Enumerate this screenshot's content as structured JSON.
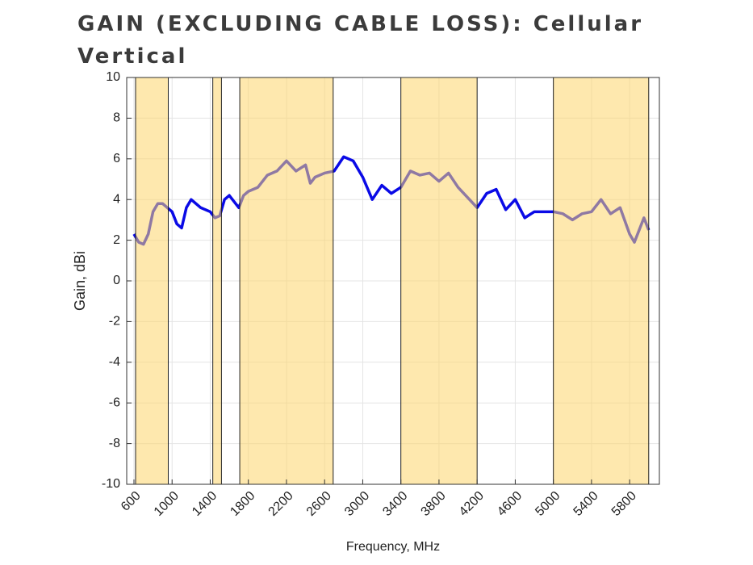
{
  "chart_data": {
    "type": "line",
    "title": "GAIN (EXCLUDING CABLE LOSS): Cellular Vertical",
    "xlabel": "Frequency, MHz",
    "ylabel": "Gain, dBi",
    "xlim": [
      524,
      6112
    ],
    "ylim": [
      -10,
      10
    ],
    "xticks": [
      600,
      1000,
      1400,
      1800,
      2200,
      2600,
      3000,
      3400,
      3800,
      4200,
      4600,
      5000,
      5400,
      5800
    ],
    "yticks": [
      -10,
      -8,
      -6,
      -4,
      -2,
      0,
      2,
      4,
      6,
      8,
      10
    ],
    "grid": true,
    "bands": [
      [
        617,
        960
      ],
      [
        1427,
        1518
      ],
      [
        1710,
        2690
      ],
      [
        3400,
        4200
      ],
      [
        5000,
        6000
      ]
    ],
    "band_color": "#fdd66b",
    "x": [
      600,
      650,
      700,
      750,
      800,
      850,
      900,
      1000,
      1050,
      1100,
      1150,
      1200,
      1300,
      1400,
      1450,
      1500,
      1550,
      1600,
      1700,
      1750,
      1800,
      1900,
      2000,
      2100,
      2200,
      2300,
      2400,
      2450,
      2500,
      2600,
      2700,
      2800,
      2900,
      3000,
      3100,
      3200,
      3300,
      3400,
      3500,
      3600,
      3700,
      3800,
      3900,
      4000,
      4100,
      4200,
      4300,
      4400,
      4500,
      4600,
      4700,
      4800,
      4900,
      5000,
      5100,
      5200,
      5300,
      5400,
      5500,
      5600,
      5700,
      5800,
      5850,
      5900,
      5950,
      6000
    ],
    "series": [
      {
        "color": "#0a0ae6",
        "values": [
          2.3,
          1.9,
          1.8,
          2.3,
          3.4,
          3.8,
          3.8,
          3.4,
          2.8,
          2.6,
          3.6,
          4.0,
          3.6,
          3.4,
          3.1,
          3.2,
          4.0,
          4.2,
          3.6,
          4.2,
          4.4,
          4.6,
          5.2,
          5.4,
          5.9,
          5.4,
          5.7,
          4.8,
          5.1,
          5.3,
          5.4,
          6.1,
          5.9,
          5.1,
          4.0,
          4.7,
          4.3,
          4.6,
          5.4,
          5.2,
          5.3,
          4.9,
          5.3,
          4.6,
          4.1,
          3.6,
          4.3,
          4.5,
          3.5,
          4.0,
          3.1,
          3.4,
          3.4,
          3.4,
          3.3,
          3.0,
          3.3,
          3.4,
          4.0,
          3.3,
          3.6,
          2.3,
          1.9,
          2.5,
          3.1,
          2.5
        ]
      }
    ]
  }
}
